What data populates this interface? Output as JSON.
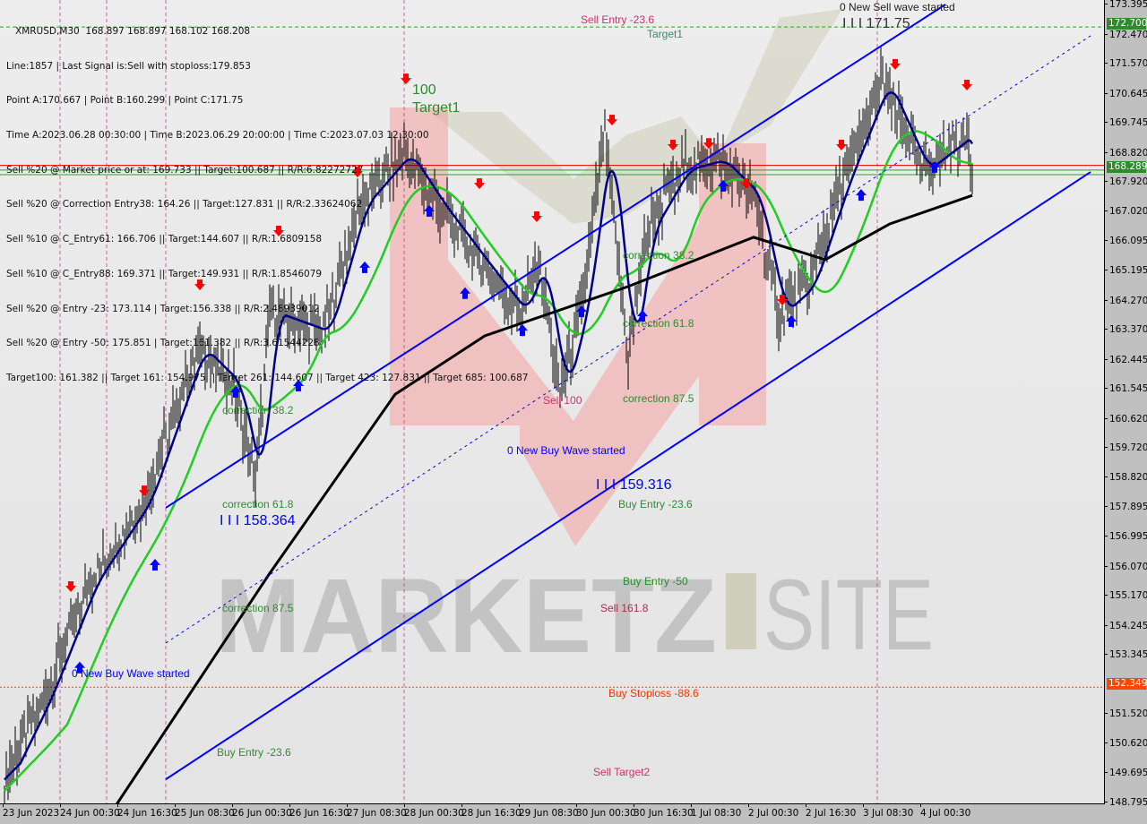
{
  "chart_data": {
    "type": "candlestick",
    "symbol_header": "XMRUSD,M30  168.897 168.897 168.102 168.208",
    "info_lines": [
      "Line:1857 | Last Signal is:Sell with stoploss:179.853",
      "Point A:170.667 | Point B:160.299 | Point C:171.75",
      "Time A:2023.06.28 00:30:00 | Time B:2023.06.29 20:00:00 | Time C:2023.07.03 12:30:00",
      "Sell %20 @ Market price or at: 169.733 || Target:100.687 || R/R:6.82272727",
      "Sell %20 @ Correction Entry38: 164.26 || Target:127.831 || R/R:2.33624062",
      "Sell %10 @ C_Entry61: 166.706 || Target:144.607 || R/R:1.6809158",
      "Sell %10 @ C_Entry88: 169.371 || Target:149.931 || R/R:1.8546079",
      "Sell %20 @ Entry -23: 173.114 | Target:156.338 || R/R:2.48939012",
      "Sell %20 @ Entry -50: 175.851 | Target:161.382 || R/R:3.61544228",
      "Target100: 161.382 || Target 161: 154.975 || Target 261: 144.607 || Target 423: 127.831 || Target 685: 100.687"
    ],
    "y_ticks": [
      "173.395",
      "172.470",
      "171.570",
      "170.645",
      "169.745",
      "168.820",
      "167.920",
      "167.020",
      "166.095",
      "165.195",
      "164.270",
      "163.370",
      "162.445",
      "161.545",
      "160.620",
      "159.720",
      "158.820",
      "157.895",
      "156.995",
      "156.070",
      "155.170",
      "154.245",
      "153.345",
      "151.520",
      "150.620",
      "149.695",
      "148.795"
    ],
    "ylim": [
      148.795,
      173.395
    ],
    "x_ticks": [
      "23 Jun 2023",
      "24 Jun 00:30",
      "24 Jun 16:30",
      "25 Jun 08:30",
      "26 Jun 00:30",
      "26 Jun 16:30",
      "27 Jun 08:30",
      "28 Jun 00:30",
      "28 Jun 16:30",
      "29 Jun 08:30",
      "30 Jun 00:30",
      "30 Jun 16:30",
      "1 Jul 08:30",
      "2 Jul 00:30",
      "2 Jul 16:30",
      "3 Jul 08:30",
      "4 Jul 00:30"
    ],
    "price_labels": [
      {
        "value": "172.700",
        "color": "#2e8b2e"
      },
      {
        "value": "168.289",
        "color": "#2e8b2e"
      },
      {
        "value": "152.349",
        "color": "#ff4500"
      }
    ],
    "hlines": [
      {
        "price": 172.7,
        "color": "#2ca02c",
        "style": "dashed"
      },
      {
        "price": 168.434,
        "color": "#e00000",
        "style": "solid"
      },
      {
        "price": 168.289,
        "color": "#2ca02c",
        "style": "solid"
      },
      {
        "price": 168.15,
        "color": "#2ca02c",
        "style": "solid"
      },
      {
        "price": 152.349,
        "color": "#ff4500",
        "style": "dotted"
      }
    ],
    "vlines": [
      "2023-06-24 00:30",
      "2023-06-24 13:30",
      "2023-06-25 06:00",
      "2023-06-28 00:30",
      "2023-07-03 12:30"
    ],
    "price_path": [
      [
        "2023-06-23 09:00",
        149.5
      ],
      [
        "2023-06-23 20:00",
        152.0
      ],
      [
        "2023-06-24 09:00",
        155.6
      ],
      [
        "2023-06-25 00:00",
        158.1
      ],
      [
        "2023-06-25 15:00",
        162.8
      ],
      [
        "2023-06-26 01:00",
        161.7
      ],
      [
        "2023-06-26 07:00",
        158.6
      ],
      [
        "2023-06-26 11:00",
        163.9
      ],
      [
        "2023-06-27 02:00",
        163.3
      ],
      [
        "2023-06-27 12:00",
        167.2
      ],
      [
        "2023-06-28 00:30",
        168.8
      ],
      [
        "2023-06-28 10:00",
        167.2
      ],
      [
        "2023-06-28 23:00",
        165.3
      ],
      [
        "2023-06-29 09:00",
        163.9
      ],
      [
        "2023-06-29 14:00",
        165.5
      ],
      [
        "2023-06-29 20:00",
        161.4
      ],
      [
        "2023-06-30 02:00",
        164.1
      ],
      [
        "2023-06-30 08:30",
        169.4
      ],
      [
        "2023-06-30 15:00",
        162.5
      ],
      [
        "2023-06-30 20:00",
        166.4
      ],
      [
        "2023-07-01 06:00",
        168.3
      ],
      [
        "2023-07-01 16:00",
        168.6
      ],
      [
        "2023-07-02 02:00",
        167.5
      ],
      [
        "2023-07-02 09:00",
        163.9
      ],
      [
        "2023-07-02 17:00",
        164.7
      ],
      [
        "2023-07-03 03:00",
        168.0
      ],
      [
        "2023-07-03 14:00",
        171.0
      ],
      [
        "2023-07-04 01:00",
        168.3
      ],
      [
        "2023-07-04 14:00",
        169.4
      ],
      [
        "2023-07-04 15:00",
        168.2
      ]
    ],
    "slow_ma": [
      [
        "2023-06-24 16:00",
        148.69
      ],
      [
        "2023-06-26 11:00",
        155.86
      ],
      [
        "2023-06-27 22:00",
        161.38
      ],
      [
        "2023-06-28 23:00",
        163.18
      ],
      [
        "2023-06-30 15:00",
        164.7
      ],
      [
        "2023-07-02 02:00",
        166.22
      ],
      [
        "2023-07-02 22:00",
        165.53
      ],
      [
        "2023-07-03 16:00",
        166.63
      ],
      [
        "2023-07-04 15:00",
        167.51
      ]
    ],
    "ma_colors": {
      "fast": "#00008b",
      "mid": "#22cc22",
      "slow": "#000000"
    },
    "channels": [
      {
        "from": [
          "2023-06-25 06:00",
          157.88
        ],
        "to": [
          "2023-07-04 07:30",
          173.395
        ],
        "style": "solid"
      },
      {
        "from": [
          "2023-06-25 06:00",
          149.51
        ],
        "to": [
          "2023-07-06 00:00",
          168.23
        ],
        "style": "solid"
      },
      {
        "from": [
          "2023-06-25 06:00",
          153.71
        ],
        "to": [
          "2023-07-06 00:00",
          172.43
        ],
        "style": "dotted"
      }
    ],
    "channel_color": "#0000ff",
    "sell_signals": [
      [
        "2023-06-24 03:30",
        155.45
      ],
      [
        "2023-06-25 00:00",
        158.4
      ],
      [
        "2023-06-25 15:30",
        164.75
      ],
      [
        "2023-06-26 13:30",
        166.41
      ],
      [
        "2023-06-27 11:30",
        168.23
      ],
      [
        "2023-06-28 01:00",
        171.1
      ],
      [
        "2023-06-28 21:30",
        167.87
      ],
      [
        "2023-06-29 13:30",
        166.85
      ],
      [
        "2023-06-30 10:30",
        169.83
      ],
      [
        "2023-07-01 03:30",
        169.06
      ],
      [
        "2023-07-01 13:30",
        169.11
      ],
      [
        "2023-07-02 00:00",
        167.87
      ],
      [
        "2023-07-02 10:00",
        164.28
      ],
      [
        "2023-07-03 02:30",
        169.06
      ],
      [
        "2023-07-03 17:30",
        171.55
      ],
      [
        "2023-07-04 13:30",
        170.91
      ]
    ],
    "buy_signals": [
      [
        "2023-06-24 06:00",
        152.97
      ],
      [
        "2023-06-25 03:00",
        156.14
      ],
      [
        "2023-06-26 01:30",
        161.47
      ],
      [
        "2023-06-26 19:00",
        161.66
      ],
      [
        "2023-06-27 13:30",
        165.31
      ],
      [
        "2023-06-28 07:30",
        167.05
      ],
      [
        "2023-06-28 17:30",
        164.51
      ],
      [
        "2023-06-29 09:30",
        163.37
      ],
      [
        "2023-06-30 02:00",
        163.95
      ],
      [
        "2023-06-30 19:00",
        163.81
      ],
      [
        "2023-07-01 17:30",
        167.82
      ],
      [
        "2023-07-02 12:30",
        163.65
      ],
      [
        "2023-07-03 08:00",
        167.54
      ],
      [
        "2023-07-04 04:30",
        168.4
      ]
    ],
    "annotations": [
      {
        "text": "Sell Entry -23.6",
        "color": "#c8326e"
      },
      {
        "text": "Target1",
        "color": "#3a8a6a"
      },
      {
        "text": "0 New Sell wave started",
        "color": "#222222"
      },
      {
        "text": "I I I 171.75",
        "color": "#333333"
      },
      {
        "text": "correction 38.2",
        "color": "#2e8b2e"
      },
      {
        "text": "correction 61.8",
        "color": "#2e8b2e"
      },
      {
        "text": "Sell 100",
        "color": "#c8326e"
      },
      {
        "text": "correction 87.5",
        "color": "#2e8b2e"
      },
      {
        "text": "0 New Buy Wave started",
        "color": "#0000ff"
      },
      {
        "text": "I I I 159.316",
        "color": "#0000ff"
      },
      {
        "text": "Buy Entry -23.6",
        "color": "#2e8b2e"
      },
      {
        "text": "Buy Entry -50",
        "color": "#2e8b2e"
      },
      {
        "text": "Sell 161.8",
        "color": "#a0304a"
      },
      {
        "text": "Buy Stoploss -88.6",
        "color": "#ff3300"
      },
      {
        "text": "Sell Target2",
        "color": "#c8326e"
      },
      {
        "text": "correction 38.2",
        "color": "#2e8b2e"
      },
      {
        "text": "correction 61.8",
        "color": "#2e8b2e"
      },
      {
        "text": "I I I 158.364",
        "color": "#0000ff"
      },
      {
        "text": "correction 87.5",
        "color": "#2e8b2e"
      },
      {
        "text": "0 New Buy Wave started",
        "color": "#0000ff"
      },
      {
        "text": "Buy Entry -23.6",
        "color": "#2e8b2e"
      },
      {
        "text": "100",
        "color": "#2e8b2e"
      },
      {
        "text": "Target1",
        "color": "#2e8b2e"
      }
    ],
    "watermark": "MARKETZISITE"
  }
}
